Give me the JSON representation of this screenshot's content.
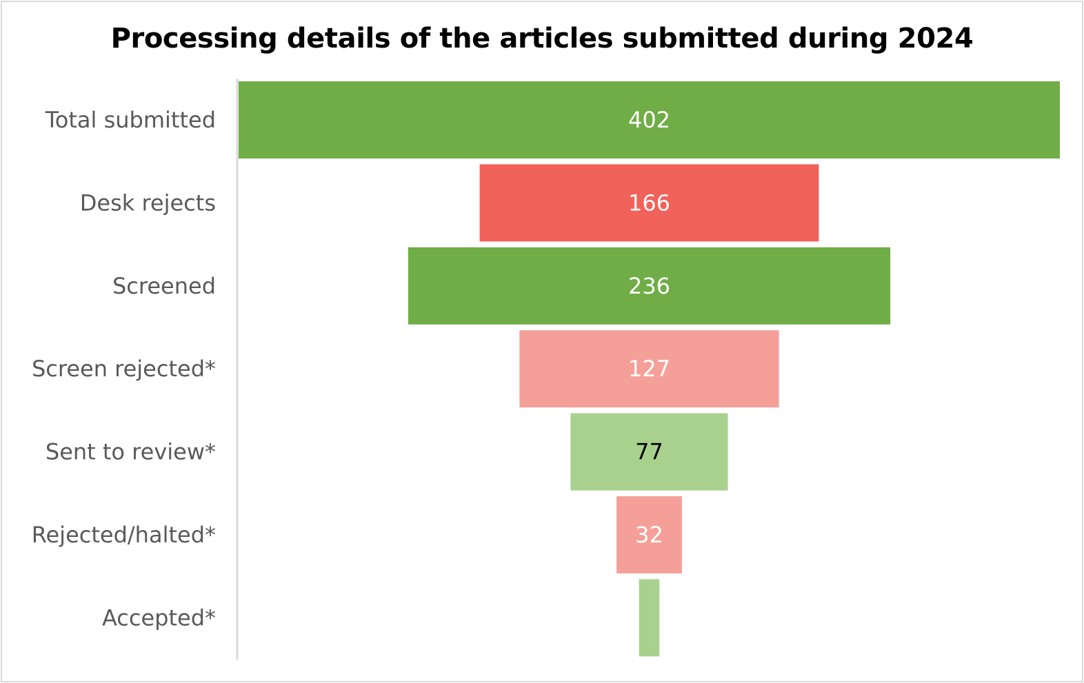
{
  "chart_data": {
    "type": "bar",
    "subtype": "funnel",
    "title": "Processing details of the articles submitted during 2024",
    "xlabel": "",
    "ylabel": "",
    "categories": [
      "Total submitted",
      "Desk rejects",
      "Screened",
      "Screen rejected*",
      "Sent to review*",
      "Rejected/halted*",
      "Accepted*"
    ],
    "values": [
      402,
      166,
      236,
      127,
      77,
      32,
      10
    ],
    "data_labels": [
      "402",
      "166",
      "236",
      "127",
      "77",
      "32",
      ""
    ],
    "colors": [
      "#70ad47",
      "#f0625a",
      "#70ad47",
      "#f4a099",
      "#a9d18e",
      "#f4a099",
      "#a9d18e"
    ],
    "label_colors": [
      "#ffffff",
      "#ffffff",
      "#ffffff",
      "#ffffff",
      "#000000",
      "#ffffff",
      "#ffffff"
    ],
    "grid": false,
    "legend": "none"
  },
  "colors": {
    "axis_line": "#d9d9d9",
    "category_text": "#595959",
    "border": "#d9d9d9"
  }
}
